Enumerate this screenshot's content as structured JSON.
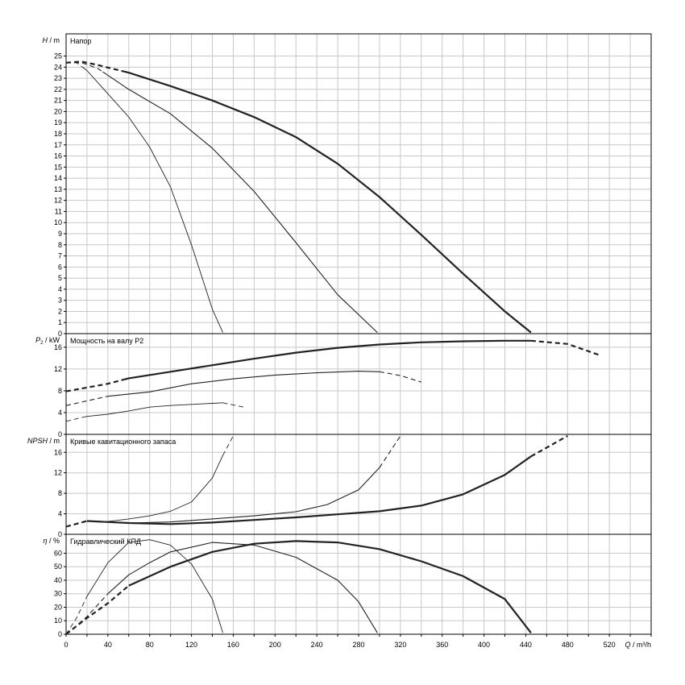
{
  "chart_data": {
    "type": "line",
    "x_axis": {
      "label_q": "Q",
      "unit": "/ m³/h",
      "range": [
        0,
        560
      ],
      "ticks": [
        "0",
        "40",
        "80",
        "120",
        "160",
        "200",
        "240",
        "280",
        "320",
        "360",
        "400",
        "440",
        "480",
        "520"
      ],
      "minor_step": 20
    },
    "panels": [
      {
        "id": "head",
        "title": "Напор",
        "ylabel_symbol": "H",
        "ylabel_unit": "/ m",
        "ylim": [
          0,
          27
        ],
        "ticks": [
          0,
          1,
          2,
          3,
          4,
          5,
          6,
          7,
          8,
          9,
          10,
          11,
          12,
          13,
          14,
          15,
          16,
          17,
          18,
          19,
          20,
          21,
          22,
          23,
          24,
          25
        ],
        "series": [
          {
            "weight": "bold",
            "points": [
              [
                0,
                24.4
              ],
              [
                15,
                24.5
              ],
              [
                30,
                24.2
              ],
              [
                60,
                23.5
              ],
              [
                100,
                22.3
              ],
              [
                140,
                21.0
              ],
              [
                180,
                19.5
              ],
              [
                220,
                17.7
              ],
              [
                260,
                15.3
              ],
              [
                300,
                12.3
              ],
              [
                340,
                8.9
              ],
              [
                380,
                5.4
              ],
              [
                420,
                2.0
              ],
              [
                445,
                0.1
              ]
            ],
            "dashed_until": 55
          },
          {
            "weight": "medium",
            "points": [
              [
                0,
                24.4
              ],
              [
                15,
                24.4
              ],
              [
                30,
                23.9
              ],
              [
                60,
                22.0
              ],
              [
                100,
                19.8
              ],
              [
                140,
                16.7
              ],
              [
                180,
                12.8
              ],
              [
                220,
                8.2
              ],
              [
                260,
                3.5
              ],
              [
                298,
                0.1
              ]
            ],
            "dashed_until": 35
          },
          {
            "weight": "thin",
            "points": [
              [
                0,
                24.4
              ],
              [
                10,
                24.4
              ],
              [
                20,
                23.7
              ],
              [
                40,
                21.6
              ],
              [
                60,
                19.5
              ],
              [
                80,
                16.8
              ],
              [
                100,
                13.2
              ],
              [
                120,
                8.0
              ],
              [
                140,
                2.2
              ],
              [
                150,
                0.1
              ]
            ],
            "dashed_until": 15
          }
        ]
      },
      {
        "id": "power",
        "title": "Мощность на валу P2",
        "ylabel_symbol": "P",
        "ylabel_sub": "2",
        "ylabel_unit": "/ kW",
        "ylim": [
          0,
          18.5
        ],
        "ticks": [
          0,
          4,
          8,
          12,
          16
        ],
        "series": [
          {
            "weight": "bold",
            "points": [
              [
                0,
                7.9
              ],
              [
                40,
                9.3
              ],
              [
                60,
                10.3
              ],
              [
                100,
                11.5
              ],
              [
                140,
                12.7
              ],
              [
                180,
                13.9
              ],
              [
                220,
                15.0
              ],
              [
                260,
                15.9
              ],
              [
                300,
                16.5
              ],
              [
                340,
                16.9
              ],
              [
                380,
                17.1
              ],
              [
                420,
                17.2
              ],
              [
                445,
                17.2
              ],
              [
                480,
                16.6
              ],
              [
                510,
                14.6
              ]
            ],
            "dashed_until": 55,
            "dashed_from": 445
          },
          {
            "weight": "medium",
            "points": [
              [
                0,
                5.3
              ],
              [
                40,
                7.0
              ],
              [
                80,
                7.8
              ],
              [
                120,
                9.3
              ],
              [
                160,
                10.2
              ],
              [
                200,
                10.9
              ],
              [
                240,
                11.3
              ],
              [
                280,
                11.6
              ],
              [
                300,
                11.5
              ],
              [
                320,
                10.8
              ],
              [
                340,
                9.6
              ]
            ],
            "dashed_until": 40,
            "dashed_from": 300
          },
          {
            "weight": "thin",
            "points": [
              [
                0,
                2.4
              ],
              [
                20,
                3.3
              ],
              [
                40,
                3.7
              ],
              [
                60,
                4.3
              ],
              [
                80,
                5.0
              ],
              [
                100,
                5.3
              ],
              [
                120,
                5.5
              ],
              [
                140,
                5.7
              ],
              [
                150,
                5.8
              ],
              [
                170,
                5.0
              ]
            ],
            "dashed_until": 15,
            "dashed_from": 150
          }
        ]
      },
      {
        "id": "npsh",
        "title": "Кривые кавитационного запаса",
        "ylabel_symbol": "NPSH",
        "ylabel_unit": "/ m",
        "ylim": [
          0,
          19.5
        ],
        "ticks": [
          0,
          4,
          8,
          12,
          16
        ],
        "series": [
          {
            "weight": "bold",
            "points": [
              [
                0,
                1.5
              ],
              [
                20,
                2.6
              ],
              [
                60,
                2.2
              ],
              [
                100,
                2.0
              ],
              [
                140,
                2.3
              ],
              [
                180,
                2.8
              ],
              [
                220,
                3.3
              ],
              [
                260,
                3.9
              ],
              [
                300,
                4.5
              ],
              [
                340,
                5.6
              ],
              [
                380,
                7.8
              ],
              [
                420,
                11.6
              ],
              [
                445,
                15.2
              ],
              [
                480,
                19.2
              ]
            ],
            "dashed_until": 20,
            "dashed_from": 445
          },
          {
            "weight": "medium",
            "points": [
              [
                0,
                1.5
              ],
              [
                20,
                2.6
              ],
              [
                60,
                2.2
              ],
              [
                100,
                2.4
              ],
              [
                140,
                3.0
              ],
              [
                180,
                3.6
              ],
              [
                220,
                4.4
              ],
              [
                250,
                5.8
              ],
              [
                280,
                8.7
              ],
              [
                300,
                13.0
              ],
              [
                320,
                19.2
              ]
            ],
            "dashed_until": 20,
            "dashed_from": 300
          },
          {
            "weight": "thin",
            "points": [
              [
                0,
                1.5
              ],
              [
                20,
                2.6
              ],
              [
                40,
                2.5
              ],
              [
                60,
                3.0
              ],
              [
                80,
                3.6
              ],
              [
                100,
                4.5
              ],
              [
                120,
                6.3
              ],
              [
                140,
                11.0
              ],
              [
                150,
                15.4
              ],
              [
                160,
                19.2
              ]
            ],
            "dashed_until": 20,
            "dashed_from": 150
          }
        ]
      },
      {
        "id": "eff",
        "title": "Гидравлический КПД",
        "ylabel_symbol": "η",
        "ylabel_unit": "/ %",
        "ylim": [
          0,
          74
        ],
        "ticks": [
          0,
          10,
          20,
          30,
          40,
          50,
          60
        ],
        "series": [
          {
            "weight": "bold",
            "points": [
              [
                0,
                0
              ],
              [
                20,
                12
              ],
              [
                40,
                23
              ],
              [
                60,
                36
              ],
              [
                100,
                50
              ],
              [
                140,
                61
              ],
              [
                180,
                67
              ],
              [
                220,
                69
              ],
              [
                260,
                68
              ],
              [
                300,
                63
              ],
              [
                340,
                54
              ],
              [
                380,
                43
              ],
              [
                420,
                26
              ],
              [
                445,
                1
              ]
            ],
            "dashed_until": 60
          },
          {
            "weight": "medium",
            "points": [
              [
                0,
                0
              ],
              [
                20,
                13
              ],
              [
                40,
                30
              ],
              [
                60,
                44
              ],
              [
                80,
                53
              ],
              [
                100,
                61
              ],
              [
                140,
                68
              ],
              [
                180,
                66
              ],
              [
                220,
                57
              ],
              [
                260,
                40
              ],
              [
                280,
                24
              ],
              [
                298,
                1
              ]
            ],
            "dashed_until": 40
          },
          {
            "weight": "thin",
            "points": [
              [
                0,
                0
              ],
              [
                10,
                12
              ],
              [
                20,
                28
              ],
              [
                40,
                53
              ],
              [
                60,
                68
              ],
              [
                80,
                70
              ],
              [
                100,
                66
              ],
              [
                120,
                52
              ],
              [
                140,
                26
              ],
              [
                150,
                1
              ]
            ],
            "dashed_until": 20
          }
        ]
      }
    ]
  }
}
